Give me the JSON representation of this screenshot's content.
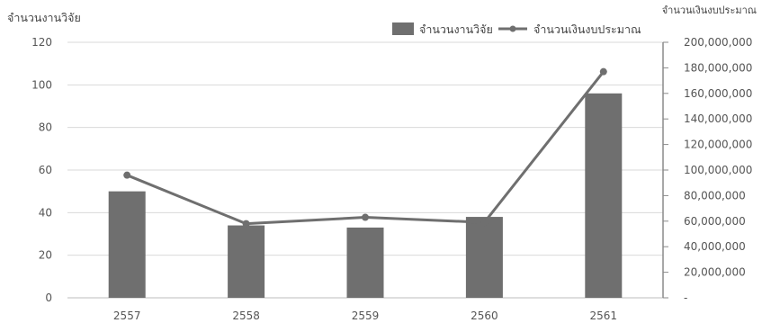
{
  "chart_data": {
    "type": "bar",
    "title": "",
    "categories": [
      "2557",
      "2558",
      "2559",
      "2560",
      "2561"
    ],
    "y_left_label": "จำนวนงานวิจัย",
    "y_right_label": "จำนวนเงินงบประมาณ",
    "y_left_range": [
      0,
      120
    ],
    "y_left_ticks": [
      "0",
      "20",
      "40",
      "60",
      "80",
      "100",
      "120"
    ],
    "y_right_range": [
      0,
      200000000
    ],
    "y_right_ticks": [
      "-",
      "20,000,000",
      "40,000,000",
      "60,000,000",
      "80,000,000",
      "100,000,000",
      "120,000,000",
      "140,000,000",
      "160,000,000",
      "180,000,000",
      "200,000,000"
    ],
    "grid": true,
    "legend_position": "top-right",
    "series": [
      {
        "name": "จำนวนงานวิจัย",
        "type": "bar",
        "axis": "left",
        "color": "#6f6f6f",
        "values": [
          50,
          34,
          33,
          38,
          96
        ]
      },
      {
        "name": "จำนวนเงินงบประมาณ",
        "type": "line",
        "axis": "right",
        "color": "#6f6f6f",
        "values": [
          96000000,
          58000000,
          63000000,
          59000000,
          177000000
        ]
      }
    ]
  }
}
